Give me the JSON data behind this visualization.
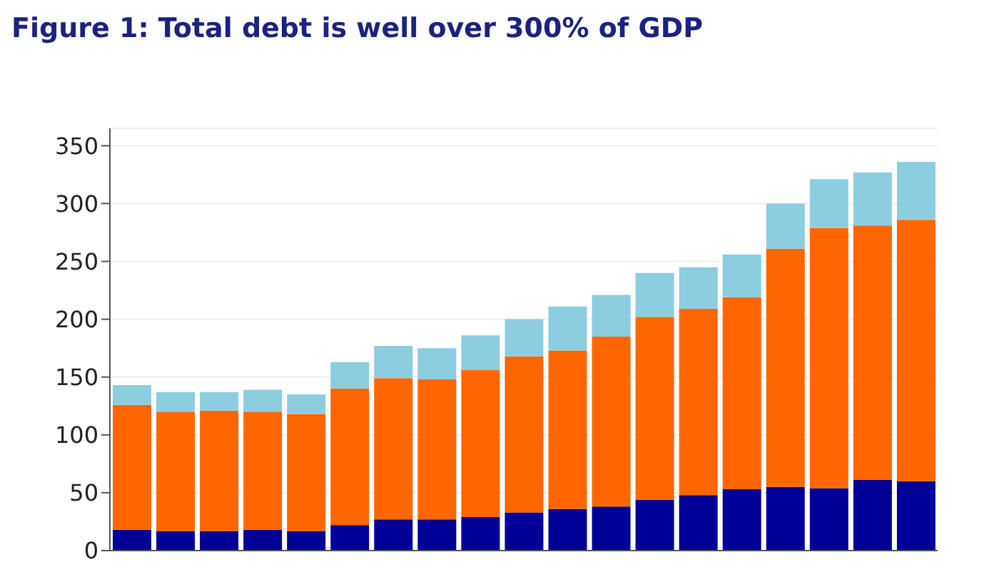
{
  "chart_data": {
    "type": "bar",
    "title": "Figure 1: Total debt is well over 300% of GDP",
    "stacked": true,
    "grid": "y",
    "categories": [
      null,
      null,
      null,
      null,
      null,
      null,
      null,
      null,
      null,
      null,
      null,
      null,
      null,
      null,
      null,
      null,
      null,
      null,
      null
    ],
    "series": [
      {
        "color": "#000099",
        "values": [
          18,
          17,
          17,
          18,
          17,
          22,
          27,
          27,
          29,
          33,
          36,
          38,
          44,
          48,
          53,
          55,
          54,
          61,
          60
        ]
      },
      {
        "color": "#ff6600",
        "values": [
          108,
          103,
          104,
          102,
          101,
          118,
          122,
          121,
          127,
          135,
          137,
          147,
          158,
          161,
          166,
          206,
          225,
          220,
          226
        ]
      },
      {
        "color": "#8ccde0",
        "values": [
          17,
          17,
          16,
          19,
          17,
          23,
          28,
          27,
          30,
          32,
          38,
          36,
          38,
          36,
          37,
          39,
          42,
          46,
          50
        ]
      }
    ],
    "ylim": [
      0,
      365
    ],
    "yticks": [
      0,
      50,
      100,
      150,
      200,
      250,
      300,
      350
    ]
  }
}
